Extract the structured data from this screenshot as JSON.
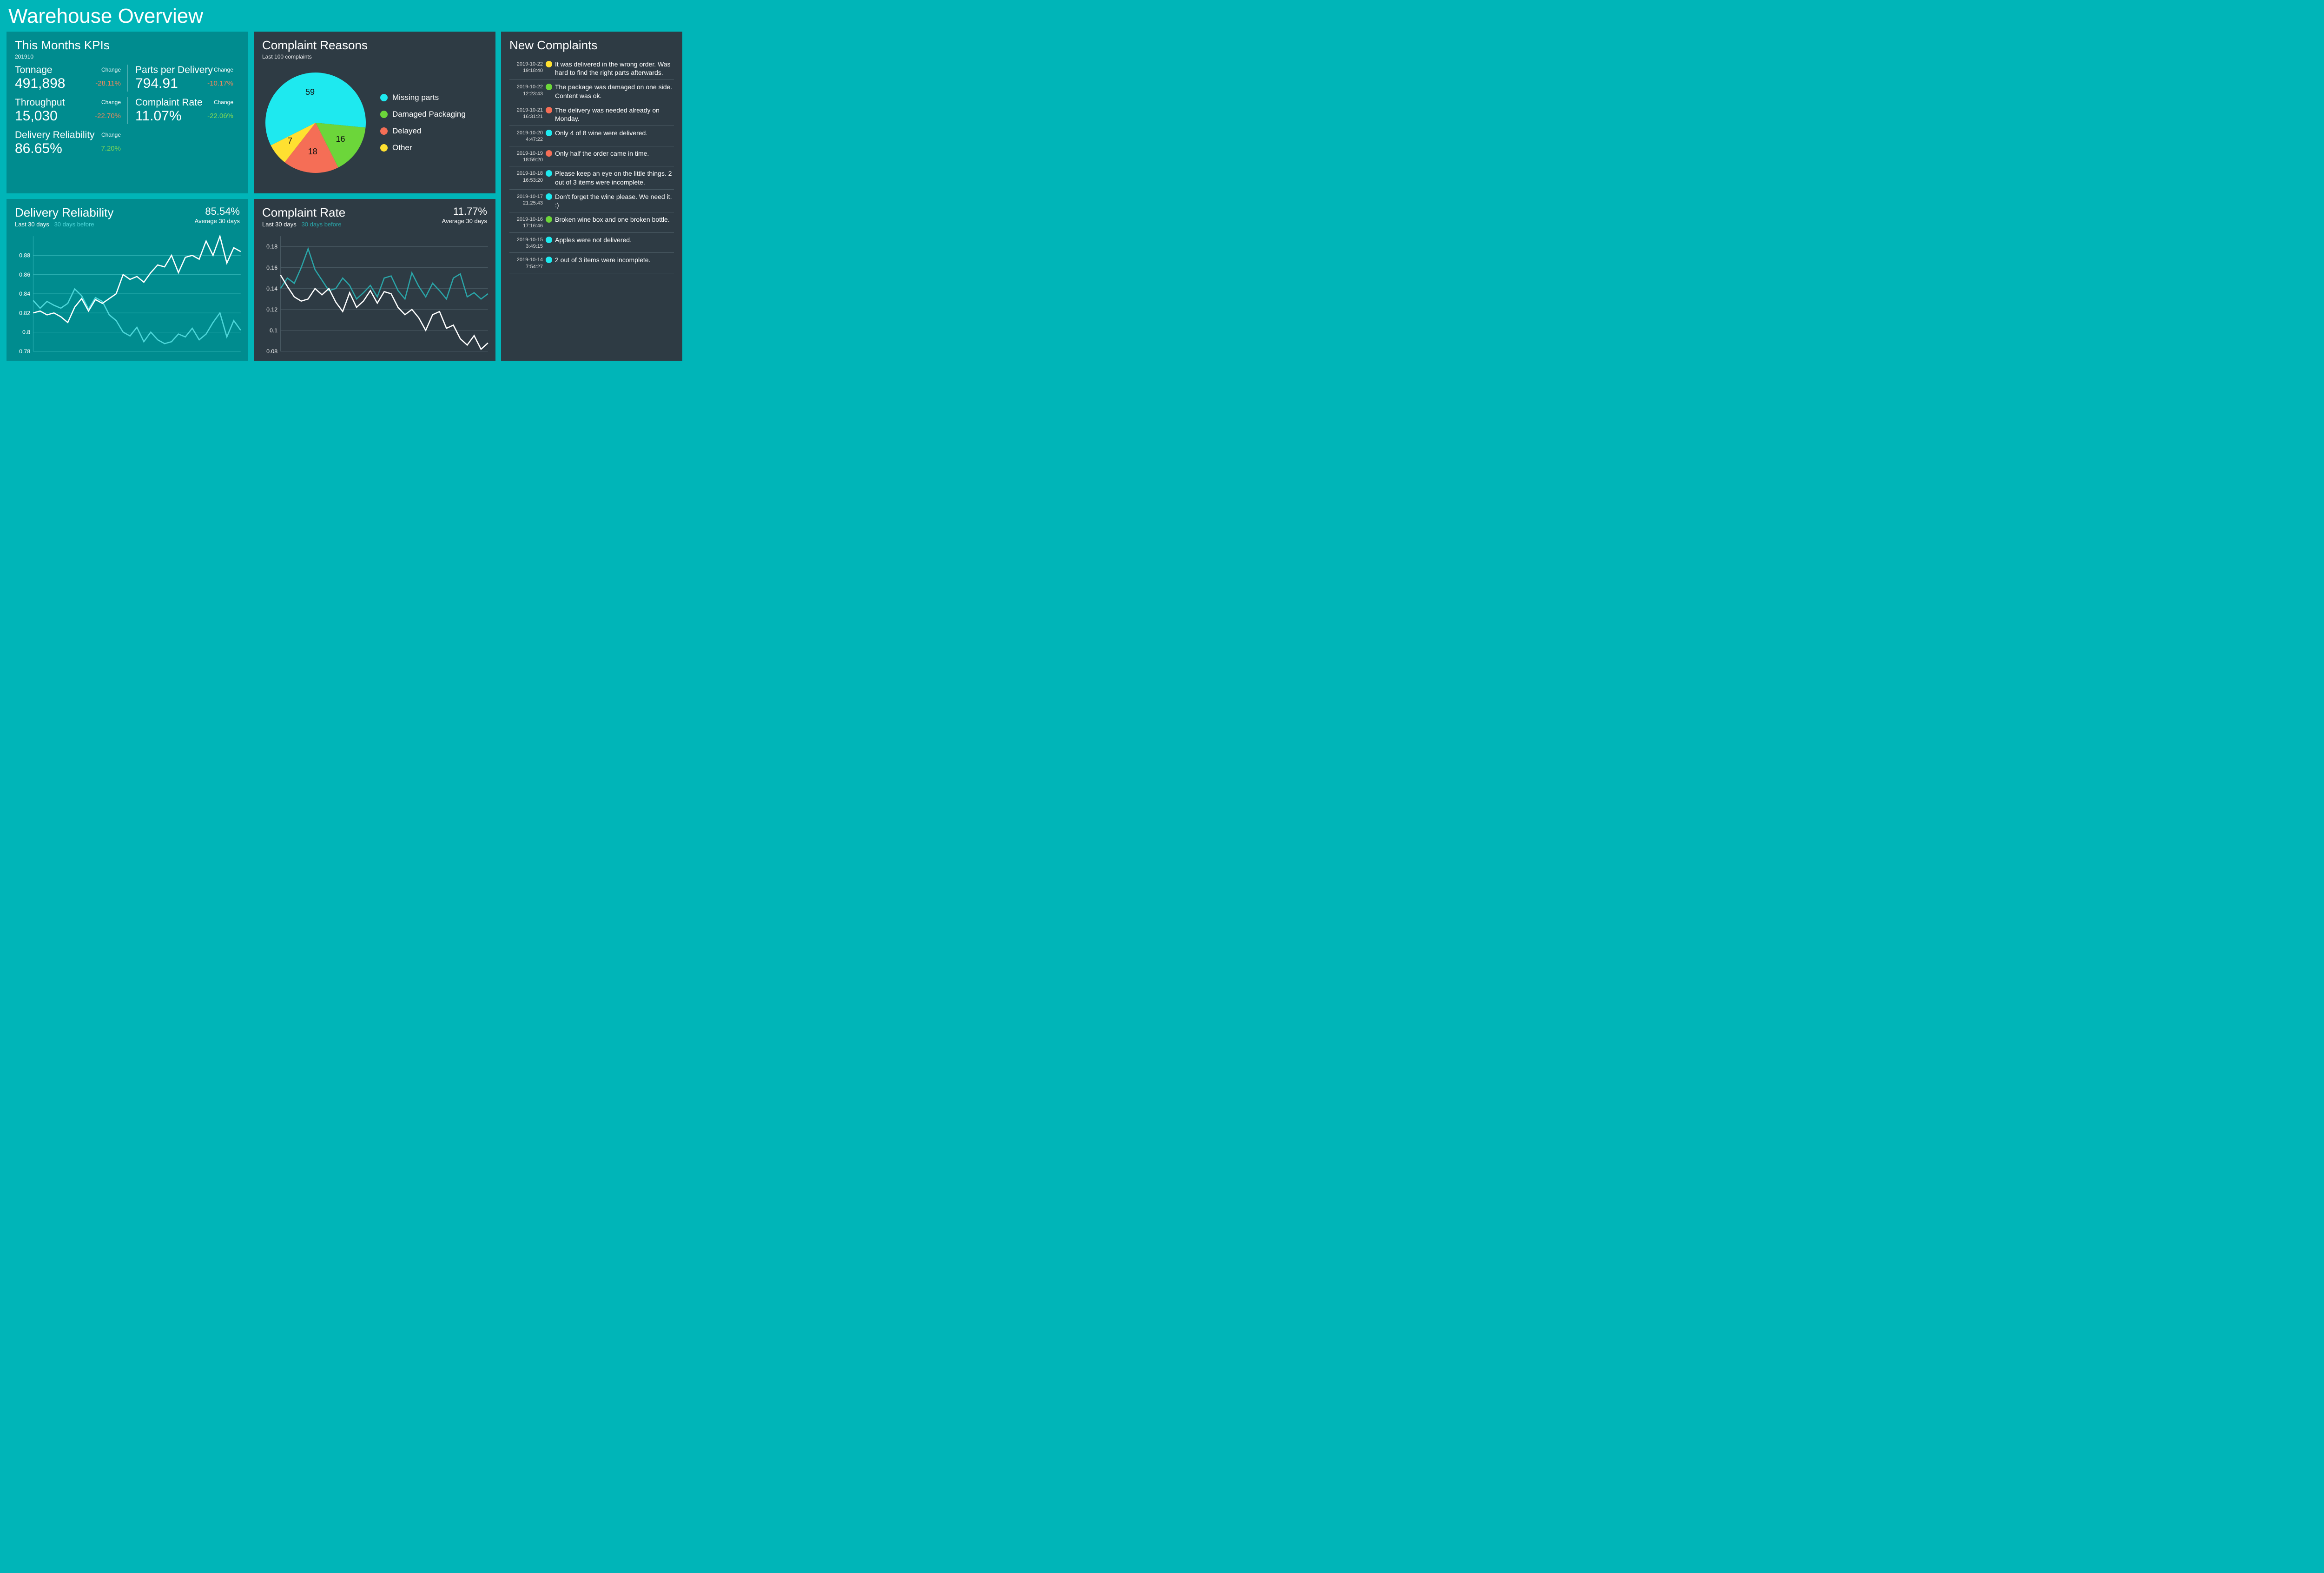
{
  "page_title": "Warehouse Overview",
  "colors": {
    "page_bg": "#00b5b8",
    "panel_teal": "#008c8f",
    "panel_dark": "#2e3b44",
    "text": "#ffffff",
    "neg": "#f08a5d",
    "pos": "#7ed957",
    "series_current": "#ffffff",
    "series_prev_teal": "#4dd7da",
    "series_prev_dark": "#2aa5a8",
    "grid_teal": "#2fb3b5",
    "grid_dark": "#4a5a63"
  },
  "kpi_panel": {
    "title": "This Months KPIs",
    "period": "201910",
    "items": [
      {
        "label": "Tonnage",
        "value": "491,898",
        "change_label": "Change",
        "change": "-28.11%",
        "direction": "neg"
      },
      {
        "label": "Parts per Delivery",
        "value": "794.91",
        "change_label": "Change",
        "change": "-10.17%",
        "direction": "neg"
      },
      {
        "label": "Throughput",
        "value": "15,030",
        "change_label": "Change",
        "change": "-22.70%",
        "direction": "neg"
      },
      {
        "label": "Complaint Rate",
        "value": "11.07%",
        "change_label": "Change",
        "change": "-22.06%",
        "direction": "pos"
      },
      {
        "label": "Delivery Reliability",
        "value": "86.65%",
        "change_label": "Change",
        "change": "7.20%",
        "direction": "pos"
      }
    ]
  },
  "pie_panel": {
    "title": "Complaint Reasons",
    "subtitle": "Last 100 complaints",
    "slices": [
      {
        "name": "Missing parts",
        "value": 59,
        "color": "#1ee9ef"
      },
      {
        "name": "Damaged Packaging",
        "value": 16,
        "color": "#6cd63a"
      },
      {
        "name": "Delayed",
        "value": 18,
        "color": "#f56e56"
      },
      {
        "name": "Other",
        "value": 7,
        "color": "#ffe030"
      }
    ]
  },
  "complaints_panel": {
    "title": "New Complaints",
    "items": [
      {
        "date": "2019-10-22",
        "time": "19:18:40",
        "color": "#ffe030",
        "text": "It was delivered in the wrong order. Was hard to find the right parts afterwards."
      },
      {
        "date": "2019-10-22",
        "time": "12:23:43",
        "color": "#6cd63a",
        "text": "The package was damaged on one side. Content was ok."
      },
      {
        "date": "2019-10-21",
        "time": "16:31:21",
        "color": "#f56e56",
        "text": "The delivery was needed already on Monday."
      },
      {
        "date": "2019-10-20",
        "time": "4:47:22",
        "color": "#1ee9ef",
        "text": "Only 4 of 8 wine were delivered."
      },
      {
        "date": "2019-10-19",
        "time": "18:59:20",
        "color": "#f56e56",
        "text": "Only half the order came in time."
      },
      {
        "date": "2019-10-18",
        "time": "16:53:20",
        "color": "#1ee9ef",
        "text": "Please keep an eye on the little things. 2 out of 3 items were incomplete."
      },
      {
        "date": "2019-10-17",
        "time": "21:25:43",
        "color": "#1ee9ef",
        "text": "Don't forget the wine please. We need it. :)"
      },
      {
        "date": "2019-10-16",
        "time": "17:16:46",
        "color": "#6cd63a",
        "text": "Broken wine box and one broken bottle."
      },
      {
        "date": "2019-10-15",
        "time": "3:49:15",
        "color": "#1ee9ef",
        "text": "Apples were not delivered."
      },
      {
        "date": "2019-10-14",
        "time": "7:54:27",
        "color": "#1ee9ef",
        "text": "2 out of 3 items were incomplete."
      }
    ]
  },
  "reliability_chart": {
    "title": "Delivery Reliability",
    "type": "line",
    "subtitle_current": "Last 30 days",
    "subtitle_prev": "30 days before",
    "avg_value": "85.54%",
    "avg_label": "Average 30 days",
    "ylim": [
      0.78,
      0.9
    ],
    "yticks": [
      0.78,
      0.8,
      0.82,
      0.84,
      0.86,
      0.88
    ],
    "ytick_labels": [
      "0.78",
      "0.8",
      "0.82",
      "0.84",
      "0.86",
      "0.88"
    ],
    "grid_color": "#2fb3b5",
    "line_width": 2.5,
    "series_current_color": "#ffffff",
    "series_prev_color": "#4dd7da",
    "current": [
      0.82,
      0.822,
      0.818,
      0.82,
      0.816,
      0.81,
      0.826,
      0.835,
      0.822,
      0.834,
      0.83,
      0.835,
      0.84,
      0.86,
      0.855,
      0.858,
      0.852,
      0.862,
      0.87,
      0.868,
      0.88,
      0.862,
      0.878,
      0.88,
      0.876,
      0.895,
      0.88,
      0.9,
      0.872,
      0.888,
      0.884
    ],
    "prev": [
      0.833,
      0.825,
      0.832,
      0.828,
      0.825,
      0.83,
      0.845,
      0.838,
      0.824,
      0.836,
      0.832,
      0.818,
      0.812,
      0.8,
      0.796,
      0.805,
      0.79,
      0.8,
      0.792,
      0.788,
      0.79,
      0.798,
      0.795,
      0.804,
      0.792,
      0.798,
      0.81,
      0.82,
      0.795,
      0.812,
      0.802
    ]
  },
  "complaint_chart": {
    "title": "Complaint Rate",
    "type": "line",
    "subtitle_current": "Last 30 days",
    "subtitle_prev": "30 days before",
    "avg_value": "11.77%",
    "avg_label": "Average 30 days",
    "ylim": [
      0.08,
      0.19
    ],
    "yticks": [
      0.08,
      0.1,
      0.12,
      0.14,
      0.16,
      0.18
    ],
    "ytick_labels": [
      "0.08",
      "0.1",
      "0.12",
      "0.14",
      "0.16",
      "0.18"
    ],
    "grid_color": "#4a5a63",
    "line_width": 2.5,
    "series_current_color": "#ffffff",
    "series_prev_color": "#2aa5a8",
    "current": [
      0.153,
      0.142,
      0.132,
      0.128,
      0.13,
      0.14,
      0.134,
      0.14,
      0.127,
      0.118,
      0.136,
      0.122,
      0.128,
      0.138,
      0.126,
      0.137,
      0.135,
      0.122,
      0.115,
      0.12,
      0.112,
      0.1,
      0.115,
      0.118,
      0.102,
      0.105,
      0.092,
      0.086,
      0.095,
      0.082,
      0.088
    ],
    "prev": [
      0.14,
      0.15,
      0.145,
      0.16,
      0.178,
      0.158,
      0.148,
      0.138,
      0.14,
      0.15,
      0.143,
      0.13,
      0.136,
      0.143,
      0.132,
      0.15,
      0.152,
      0.138,
      0.13,
      0.155,
      0.142,
      0.132,
      0.145,
      0.138,
      0.13,
      0.15,
      0.154,
      0.132,
      0.136,
      0.13,
      0.135
    ]
  }
}
